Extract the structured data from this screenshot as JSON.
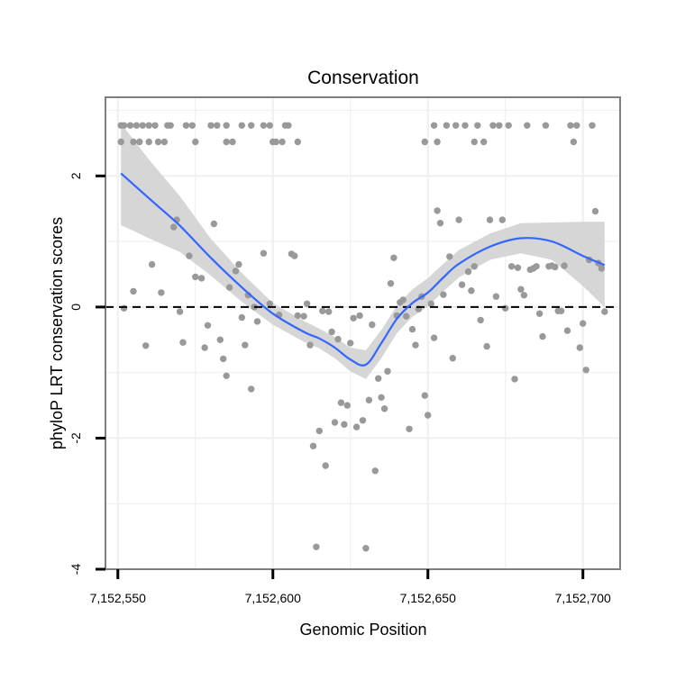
{
  "chart_data": {
    "type": "scatter",
    "title": "Conservation",
    "xlabel": "Genomic Position",
    "ylabel": "phyloP LRT conservation scores",
    "xlim": [
      7152546,
      7152712
    ],
    "ylim": [
      -4.0,
      3.2
    ],
    "x_ticks": [
      {
        "value": 7152550,
        "label": "7,152,550"
      },
      {
        "value": 7152600,
        "label": "7,152,600"
      },
      {
        "value": 7152650,
        "label": "7,152,650"
      },
      {
        "value": 7152700,
        "label": "7,152,700"
      }
    ],
    "y_ticks": [
      {
        "value": 2,
        "label": "2"
      },
      {
        "value": 0,
        "label": "0"
      },
      {
        "value": -2,
        "label": "-2"
      },
      {
        "value": -4,
        "label": "-4"
      }
    ],
    "grid": true,
    "reference_line": {
      "y": 0,
      "style": "dashed"
    },
    "colors": {
      "points": "#999999",
      "smooth": "#3366ff",
      "ribbon": "#d4d4d4",
      "border": "#7f7f7f",
      "grid": "#f0f0f0"
    },
    "series": [
      {
        "kind": "points",
        "x": [
          7152551,
          7152552,
          7152554,
          7152556,
          7152558,
          7152560,
          7152562,
          7152566,
          7152567,
          7152572,
          7152574,
          7152580,
          7152582,
          7152585,
          7152590,
          7152593,
          7152597,
          7152599,
          7152604,
          7152605,
          7152551,
          7152555,
          7152557,
          7152560,
          7152563,
          7152565,
          7152575,
          7152585,
          7152587,
          7152600,
          7152601,
          7152603,
          7152608,
          7152652,
          7152656,
          7152659,
          7152662,
          7152666,
          7152671,
          7152673,
          7152676,
          7152682,
          7152688,
          7152696,
          7152698,
          7152703,
          7152649,
          7152653,
          7152665,
          7152668,
          7152697,
          7152552,
          7152555,
          7152559,
          7152561,
          7152564,
          7152568,
          7152569,
          7152570,
          7152571,
          7152573,
          7152575,
          7152577,
          7152578,
          7152579,
          7152581,
          7152583,
          7152584,
          7152585,
          7152586,
          7152588,
          7152589,
          7152590,
          7152591,
          7152592,
          7152593,
          7152594,
          7152595,
          7152597,
          7152599,
          7152602,
          7152606,
          7152607,
          7152608,
          7152610,
          7152611,
          7152612,
          7152613,
          7152614,
          7152615,
          7152616,
          7152617,
          7152618,
          7152619,
          7152620,
          7152621,
          7152622,
          7152623,
          7152624,
          7152625,
          7152626,
          7152627,
          7152628,
          7152629,
          7152630,
          7152631,
          7152632,
          7152633,
          7152634,
          7152635,
          7152636,
          7152637,
          7152638,
          7152639,
          7152640,
          7152641,
          7152642,
          7152643,
          7152644,
          7152645,
          7152646,
          7152647,
          7152648,
          7152649,
          7152650,
          7152651,
          7152652,
          7152653,
          7152654,
          7152655,
          7152657,
          7152658,
          7152660,
          7152661,
          7152663,
          7152664,
          7152665,
          7152667,
          7152669,
          7152670,
          7152672,
          7152674,
          7152675,
          7152677,
          7152678,
          7152679,
          7152680,
          7152681,
          7152683,
          7152684,
          7152685,
          7152686,
          7152687,
          7152689,
          7152690,
          7152691,
          7152692,
          7152693,
          7152694,
          7152695,
          7152699,
          7152700,
          7152701,
          7152702,
          7152704,
          7152705,
          7152706,
          7152707
        ],
        "y": [
          2.77,
          2.77,
          2.77,
          2.77,
          2.77,
          2.77,
          2.77,
          2.77,
          2.77,
          2.77,
          2.77,
          2.77,
          2.77,
          2.77,
          2.77,
          2.77,
          2.77,
          2.77,
          2.77,
          2.77,
          2.52,
          2.52,
          2.52,
          2.52,
          2.52,
          2.52,
          2.52,
          2.52,
          2.52,
          2.52,
          2.52,
          2.52,
          2.52,
          2.77,
          2.77,
          2.77,
          2.77,
          2.77,
          2.77,
          2.77,
          2.77,
          2.77,
          2.77,
          2.77,
          2.77,
          2.77,
          2.52,
          2.52,
          2.52,
          2.52,
          2.52,
          -0.02,
          0.24,
          -0.59,
          0.65,
          0.22,
          1.22,
          1.33,
          -0.07,
          -0.54,
          0.78,
          0.46,
          0.44,
          -0.62,
          -0.28,
          1.27,
          -0.5,
          -0.79,
          -1.05,
          0.3,
          0.55,
          0.65,
          -0.16,
          -0.58,
          0.18,
          -1.25,
          0.0,
          -0.22,
          0.82,
          0.05,
          -0.12,
          0.81,
          0.78,
          -0.13,
          -0.14,
          0.05,
          -0.58,
          -2.12,
          -3.66,
          -1.89,
          -0.06,
          -2.42,
          -0.07,
          -0.38,
          -1.76,
          -0.49,
          -1.46,
          -1.79,
          -1.5,
          -0.55,
          -0.17,
          -1.83,
          -0.13,
          -1.73,
          -3.68,
          -1.42,
          -0.27,
          -2.5,
          -1.09,
          -1.38,
          -1.55,
          -0.98,
          0.36,
          0.75,
          -0.13,
          0.07,
          0.11,
          -0.14,
          -1.86,
          -0.34,
          -0.58,
          -0.03,
          0.16,
          -1.35,
          -1.65,
          0.05,
          -0.47,
          1.47,
          1.28,
          0.19,
          0.77,
          -0.78,
          1.33,
          0.34,
          0.54,
          0.25,
          0.62,
          -0.2,
          -0.6,
          1.33,
          0.16,
          1.33,
          -0.02,
          0.62,
          -1.1,
          0.6,
          0.27,
          0.18,
          0.57,
          0.59,
          0.62,
          -0.1,
          -0.45,
          0.62,
          0.63,
          0.61,
          -0.06,
          -0.06,
          0.63,
          -0.36,
          -0.62,
          -0.25,
          -0.96,
          0.72,
          1.46,
          0.67,
          0.59,
          -0.07
        ]
      },
      {
        "kind": "smooth",
        "x": [
          7152551,
          7152560,
          7152570,
          7152580,
          7152590,
          7152600,
          7152610,
          7152615,
          7152620,
          7152625,
          7152630,
          7152635,
          7152640,
          7152645,
          7152650,
          7152655,
          7152660,
          7152670,
          7152680,
          7152690,
          7152700,
          7152707
        ],
        "y": [
          2.04,
          1.66,
          1.24,
          0.75,
          0.3,
          -0.1,
          -0.38,
          -0.48,
          -0.62,
          -0.8,
          -0.88,
          -0.55,
          -0.18,
          0.06,
          0.22,
          0.45,
          0.66,
          0.92,
          1.05,
          1.0,
          0.78,
          0.64
        ],
        "lower": [
          1.25,
          1.05,
          0.84,
          0.48,
          0.08,
          -0.27,
          -0.53,
          -0.63,
          -0.78,
          -0.98,
          -1.1,
          -0.78,
          -0.4,
          -0.15,
          0.01,
          0.24,
          0.45,
          0.72,
          0.82,
          0.72,
          0.32,
          0.0
        ],
        "upper": [
          2.8,
          2.25,
          1.69,
          1.04,
          0.52,
          0.06,
          -0.21,
          -0.33,
          -0.46,
          -0.62,
          -0.66,
          -0.35,
          0.02,
          0.27,
          0.44,
          0.66,
          0.87,
          1.12,
          1.28,
          1.29,
          1.3,
          1.3
        ]
      }
    ]
  }
}
